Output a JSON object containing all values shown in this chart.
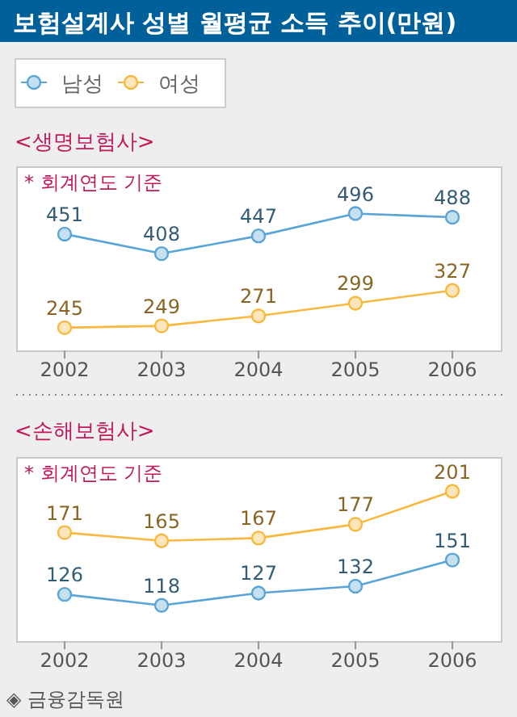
{
  "chart_data": [
    {
      "type": "line",
      "title": "보험설계사 성별 월평균 소득 추이(만원)",
      "subtitle": "<생명보험사>",
      "annotations": [
        "* 회계연도 기준"
      ],
      "categories": [
        "2002",
        "2003",
        "2004",
        "2005",
        "2006"
      ],
      "ylim": [
        195,
        600
      ],
      "data_labels": true,
      "legend": "top left",
      "marker": "circle",
      "grid": false,
      "series": [
        {
          "name": "남성",
          "color": "#5aa5d5",
          "values": [
            451,
            408,
            447,
            496,
            488
          ]
        },
        {
          "name": "여성",
          "color": "#f8b840",
          "values": [
            245,
            249,
            271,
            299,
            327
          ]
        }
      ]
    },
    {
      "type": "line",
      "subtitle": "<손해보험사>",
      "annotations": [
        "* 회계연도 기준",
        "◈ 금융감독원"
      ],
      "categories": [
        "2002",
        "2003",
        "2004",
        "2005",
        "2006"
      ],
      "ylim": [
        92,
        226
      ],
      "data_labels": true,
      "marker": "circle",
      "grid": false,
      "series": [
        {
          "color": "#f8b840",
          "values": [
            171,
            165,
            167,
            177,
            201
          ]
        },
        {
          "color": "#5aa5d5",
          "values": [
            126,
            118,
            127,
            132,
            151
          ]
        }
      ]
    }
  ]
}
